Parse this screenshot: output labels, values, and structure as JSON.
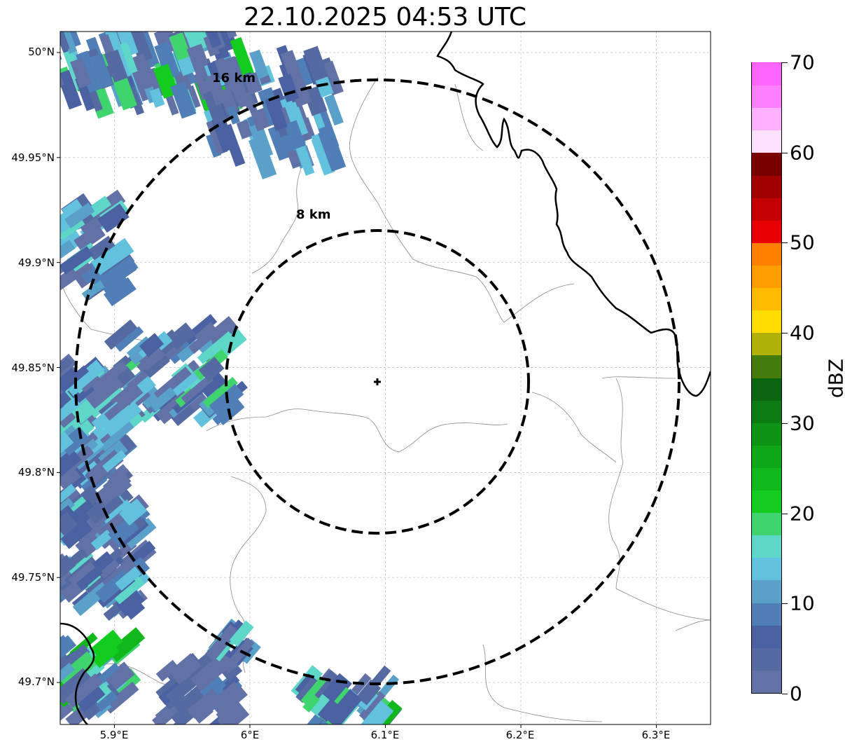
{
  "title": "22.10.2025 04:53 UTC",
  "map": {
    "extent": {
      "lon_min": 5.86,
      "lon_max": 6.34,
      "lat_min": 49.68,
      "lat_max": 50.01
    },
    "radar_site": {
      "lon": 6.095,
      "lat": 49.843
    },
    "range_rings": [
      {
        "label": "8 km",
        "radius_km": 8
      },
      {
        "label": "16 km",
        "radius_km": 16
      }
    ],
    "lat_ticks": [
      "50°N",
      "49.95°N",
      "49.9°N",
      "49.85°N",
      "49.8°N",
      "49.75°N",
      "49.7°N"
    ],
    "lon_ticks": [
      "5.9°E",
      "6°E",
      "6.1°E",
      "6.2°E",
      "6.3°E"
    ],
    "gridlines": true
  },
  "colorbar": {
    "label": "dBZ",
    "ticks": [
      "0",
      "10",
      "20",
      "30",
      "40",
      "50",
      "60",
      "70"
    ],
    "min": 0,
    "max": 70,
    "step": 2.5,
    "colors": [
      "#6272a6",
      "#566aa2",
      "#4a61a2",
      "#4f7fb6",
      "#5aa1c9",
      "#62c2dd",
      "#5ed6c8",
      "#3fd46e",
      "#12cc1f",
      "#11b81b",
      "#0fa618",
      "#0e9415",
      "#0b7b12",
      "#0a6510",
      "#437c0c",
      "#b0b20a",
      "#ffdb00",
      "#ffba00",
      "#ff9c00",
      "#ff7f00",
      "#e80000",
      "#c40000",
      "#a00000",
      "#7a0000",
      "#ffe0ff",
      "#ffb0ff",
      "#ff80ff",
      "#ff66ff",
      "#f53af0"
    ]
  }
}
